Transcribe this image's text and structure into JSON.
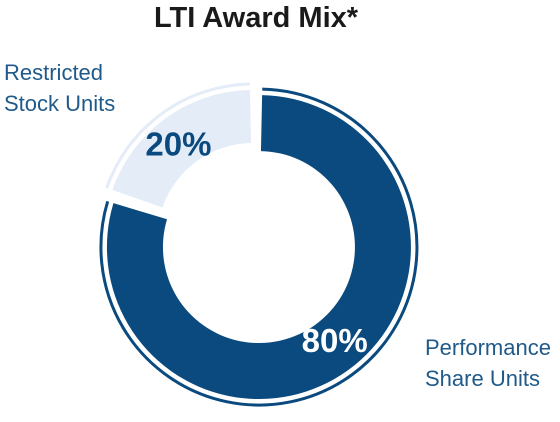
{
  "chart_data": {
    "type": "pie",
    "variant": "donut",
    "title": "LTI Award Mix*",
    "legend": "none",
    "slices": [
      {
        "category": "Restricted Stock Units",
        "label_lines": [
          "Restricted",
          "Stock Units"
        ],
        "value": 20,
        "value_label": "20%",
        "color": "#e4ecf7",
        "label_color": "#0b4a7e"
      },
      {
        "category": "Performance Share Units",
        "label_lines": [
          "Performance",
          "Share Units"
        ],
        "value": 80,
        "value_label": "80%",
        "color": "#0b4a7e",
        "label_color": "#ffffff"
      }
    ]
  },
  "colors": {
    "title": "#1a1a1a",
    "category_label": "#1f5a8a"
  }
}
